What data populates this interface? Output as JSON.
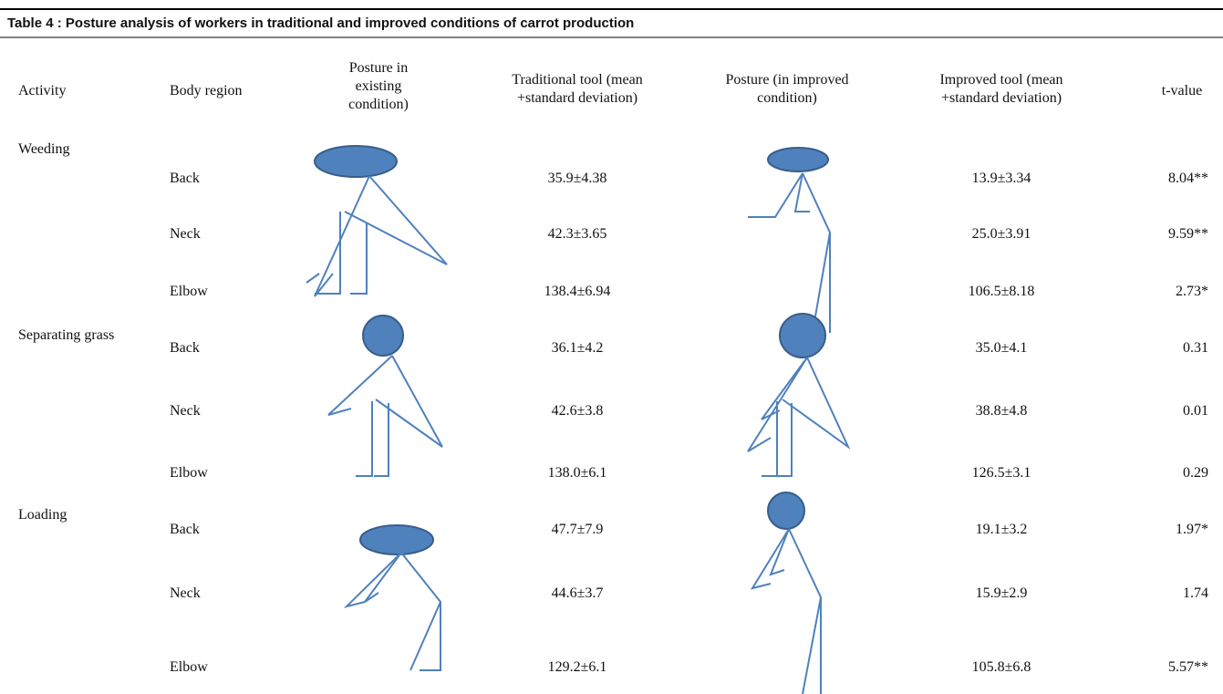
{
  "title": "Table 4 : Posture analysis of workers in traditional and improved conditions of carrot production",
  "header": [
    "Activity",
    "Body region",
    "Posture in existing condition)",
    "Traditional tool (mean +standard deviation)",
    "Posture (in improved condition)",
    "Improved tool (mean +standard deviation)",
    "t-value"
  ],
  "groups": [
    {
      "activity": "Weeding",
      "rows": [
        {
          "region": "Back",
          "traditional": "35.9±4.38",
          "improved": "13.9±3.34",
          "t": "8.04**"
        },
        {
          "region": "Neck",
          "traditional": "42.3±3.65",
          "improved": "25.0±3.91",
          "t": "9.59**"
        },
        {
          "region": "Elbow",
          "traditional": "138.4±6.94",
          "improved": "106.5±8.18",
          "t": "2.73*"
        }
      ]
    },
    {
      "activity": "Separating grass",
      "rows": [
        {
          "region": "Back",
          "traditional": "36.1±4.2",
          "improved": "35.0±4.1",
          "t": "0.31"
        },
        {
          "region": "Neck",
          "traditional": "42.6±3.8",
          "improved": "38.8±4.8",
          "t": "0.01"
        },
        {
          "region": "Elbow",
          "traditional": "138.0±6.1",
          "improved": "126.5±3.1",
          "t": "0.29"
        }
      ]
    },
    {
      "activity": "Loading",
      "rows": [
        {
          "region": "Back",
          "traditional": "47.7±7.9",
          "improved": "19.1±3.2",
          "t": "1.97*"
        },
        {
          "region": "Neck",
          "traditional": "44.6±3.7",
          "improved": "15.9±2.9",
          "t": "1.74"
        },
        {
          "region": "Elbow",
          "traditional": "129.2±6.1",
          "improved": "105.8±6.8",
          "t": "5.57**"
        }
      ]
    }
  ]
}
